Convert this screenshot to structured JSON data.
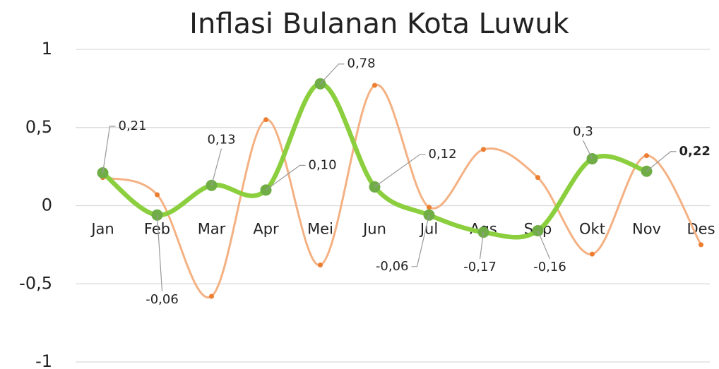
{
  "chart_data": {
    "type": "line",
    "title": "Inflasi Bulanan Kota Luwuk",
    "categories": [
      "Jan",
      "Feb",
      "Mar",
      "Apr",
      "Mei",
      "Jun",
      "Jul",
      "Ags",
      "Sep",
      "Okt",
      "Nov",
      "Des"
    ],
    "series": [
      {
        "color": "#f4b183",
        "marker_color": "#ed7d31",
        "values": [
          0.18,
          0.07,
          -0.58,
          0.55,
          -0.38,
          0.77,
          -0.01,
          0.36,
          0.18,
          -0.31,
          0.32,
          -0.25
        ]
      },
      {
        "color": "#8bcf3e",
        "marker_color": "#70ad47",
        "values": [
          0.21,
          -0.06,
          0.13,
          0.1,
          0.78,
          0.12,
          -0.06,
          -0.17,
          -0.16,
          0.3,
          0.22,
          null
        ],
        "value_labels": [
          "0,21",
          "-0,06",
          "0,13",
          "0,10",
          "0,78",
          "0,12",
          "-0,06",
          "-0,17",
          "-0,16",
          "0,3",
          "0,22",
          null
        ]
      }
    ],
    "ylim": [
      -1,
      1
    ],
    "yticks": [
      -1,
      {
        "value": -0.5,
        "label": "-0,5"
      },
      0,
      {
        "value": 0.5,
        "label": "0,5"
      },
      1
    ],
    "grid": true
  }
}
